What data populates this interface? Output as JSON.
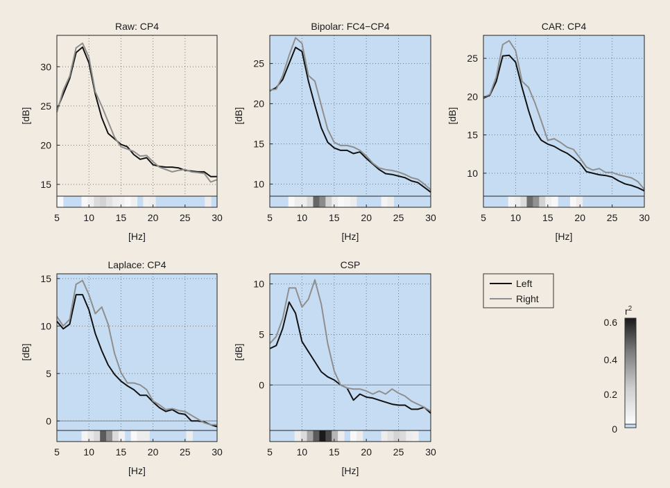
{
  "colors": {
    "background": "#f2ebe1",
    "plot_bg_raw": "#f2ebe1",
    "plot_bg": "#c6dcf2",
    "left_line": "#111111",
    "right_line": "#8e8e8e"
  },
  "legend": {
    "left_label": "Left",
    "right_label": "Right"
  },
  "colorbar": {
    "label": "r",
    "label_sup": "2",
    "ticks": [
      "0",
      "0.2",
      "0.4",
      "0.6"
    ],
    "range": [
      0,
      0.63
    ]
  },
  "chart_data": [
    {
      "type": "line",
      "title": "Raw: CP4",
      "xlabel": "[Hz]",
      "ylabel": "[dB]",
      "xlim": [
        5,
        30
      ],
      "ylim": [
        13.5,
        34
      ],
      "xticks": [
        5,
        10,
        15,
        20,
        25,
        30
      ],
      "yticks": [
        15,
        20,
        25,
        30
      ],
      "grid": true,
      "shaded_background": false,
      "x": [
        5,
        6,
        7,
        8,
        9,
        10,
        11,
        12,
        13,
        14,
        15,
        16,
        17,
        18,
        19,
        20,
        21,
        22,
        23,
        24,
        25,
        26,
        27,
        28,
        29,
        30
      ],
      "series": [
        {
          "name": "Left",
          "values": [
            24.5,
            26.5,
            28.5,
            31.8,
            32.5,
            30.5,
            26.5,
            23.5,
            21.5,
            20.8,
            20.1,
            19.8,
            18.8,
            18.2,
            18.4,
            17.5,
            17.3,
            17.2,
            17.2,
            17.1,
            16.8,
            16.7,
            16.6,
            16.6,
            16.0,
            16.0
          ]
        },
        {
          "name": "Right",
          "values": [
            24.2,
            27.0,
            28.8,
            32.4,
            33.0,
            31.2,
            26.8,
            25.0,
            23.0,
            21.0,
            19.8,
            19.5,
            19.2,
            18.6,
            18.7,
            17.9,
            17.2,
            16.9,
            16.6,
            16.8,
            16.9,
            16.6,
            16.5,
            16.4,
            15.3,
            15.6
          ]
        }
      ],
      "r2_bins": [
        0.02,
        0,
        0,
        0,
        0.02,
        0.04,
        0.1,
        0.12,
        0.08,
        0.05,
        0.04,
        0.02,
        0.04,
        0,
        0.04,
        0.05,
        0,
        0,
        0,
        0,
        0,
        0,
        0,
        0,
        0.05,
        0
      ]
    },
    {
      "type": "line",
      "title": "Bipolar: FC4−CP4",
      "xlabel": "[Hz]",
      "ylabel": "[dB]",
      "xlim": [
        5,
        30
      ],
      "ylim": [
        8.5,
        28.5
      ],
      "xticks": [
        5,
        10,
        15,
        20,
        25,
        30
      ],
      "yticks": [
        10,
        15,
        20,
        25
      ],
      "grid": true,
      "shaded_background": true,
      "x": [
        5,
        6,
        7,
        8,
        9,
        10,
        11,
        12,
        13,
        14,
        15,
        16,
        17,
        18,
        19,
        20,
        21,
        22,
        23,
        24,
        25,
        26,
        27,
        28,
        29,
        30
      ],
      "series": [
        {
          "name": "Left",
          "values": [
            21.6,
            22.0,
            23.0,
            25.0,
            27.0,
            26.5,
            22.8,
            19.8,
            17.0,
            15.2,
            14.5,
            14.2,
            14.2,
            13.8,
            14.0,
            13.2,
            12.5,
            11.8,
            11.3,
            11.2,
            11.0,
            10.8,
            10.4,
            10.2,
            9.6,
            9.0
          ]
        },
        {
          "name": "Right",
          "values": [
            21.7,
            21.8,
            23.5,
            26.0,
            28.2,
            27.5,
            23.5,
            22.8,
            19.8,
            16.8,
            15.2,
            14.8,
            14.8,
            14.6,
            14.2,
            13.5,
            12.6,
            12.0,
            11.8,
            11.7,
            11.5,
            11.2,
            10.8,
            10.6,
            10.0,
            9.3
          ]
        }
      ],
      "r2_bins": [
        0,
        0,
        0,
        0.02,
        0.05,
        0.05,
        0.1,
        0.42,
        0.32,
        0.12,
        0.05,
        0.02,
        0.03,
        0.05,
        0,
        0,
        0,
        0,
        0.03,
        0.05,
        0,
        0,
        0,
        0,
        0,
        0
      ]
    },
    {
      "type": "line",
      "title": "CAR: CP4",
      "xlabel": "[Hz]",
      "ylabel": "[dB]",
      "xlim": [
        5,
        30
      ],
      "ylim": [
        7,
        28
      ],
      "xticks": [
        5,
        10,
        15,
        20,
        25,
        30
      ],
      "yticks": [
        10,
        15,
        20,
        25
      ],
      "grid": true,
      "shaded_background": true,
      "x": [
        5,
        6,
        7,
        8,
        9,
        10,
        11,
        12,
        13,
        14,
        15,
        16,
        17,
        18,
        19,
        20,
        21,
        22,
        23,
        24,
        25,
        26,
        27,
        28,
        29,
        30
      ],
      "series": [
        {
          "name": "Left",
          "values": [
            19.8,
            20.2,
            22.0,
            25.3,
            25.4,
            24.5,
            21.2,
            18.2,
            15.6,
            14.3,
            13.8,
            13.5,
            13.0,
            12.6,
            12.0,
            11.3,
            10.2,
            10.0,
            9.8,
            9.7,
            9.5,
            9.0,
            8.6,
            8.4,
            8.1,
            7.7
          ]
        },
        {
          "name": "Right",
          "values": [
            19.9,
            20.3,
            22.6,
            26.8,
            27.3,
            26.0,
            22.0,
            21.2,
            19.2,
            16.8,
            14.3,
            14.5,
            14.0,
            13.4,
            13.1,
            12.0,
            10.8,
            10.4,
            10.6,
            10.1,
            10.1,
            9.8,
            9.6,
            9.4,
            8.9,
            7.9
          ]
        }
      ],
      "r2_bins": [
        0,
        0,
        0,
        0,
        0.03,
        0.05,
        0.1,
        0.4,
        0.3,
        0.12,
        0.04,
        0.02,
        0,
        0,
        0.02,
        0.05,
        0,
        0,
        0,
        0,
        0,
        0,
        0,
        0,
        0,
        0
      ]
    },
    {
      "type": "line",
      "title": "Laplace: CP4",
      "xlabel": "[Hz]",
      "ylabel": "[dB]",
      "xlim": [
        5,
        30
      ],
      "ylim": [
        -1,
        15.5
      ],
      "xticks": [
        5,
        10,
        15,
        20,
        25,
        30
      ],
      "yticks": [
        0,
        5,
        10,
        15
      ],
      "grid": true,
      "shaded_background": true,
      "x": [
        5,
        6,
        7,
        8,
        9,
        10,
        11,
        12,
        13,
        14,
        15,
        16,
        17,
        18,
        19,
        20,
        21,
        22,
        23,
        24,
        25,
        26,
        27,
        28,
        29,
        30
      ],
      "series": [
        {
          "name": "Left",
          "values": [
            10.5,
            9.7,
            10.2,
            13.3,
            13.3,
            11.7,
            9.2,
            7.4,
            5.9,
            4.9,
            4.2,
            3.7,
            3.3,
            2.7,
            2.7,
            2.0,
            1.4,
            1.0,
            1.2,
            0.8,
            0.7,
            0.0,
            0.0,
            -0.1,
            -0.4,
            -0.6
          ]
        },
        {
          "name": "Right",
          "values": [
            11.0,
            10.0,
            10.7,
            14.4,
            14.8,
            13.3,
            11.3,
            12.0,
            10.2,
            7.1,
            5.1,
            4.0,
            4.0,
            3.8,
            3.3,
            2.1,
            1.7,
            1.2,
            1.3,
            1.1,
            1.0,
            0.6,
            0.2,
            -0.2,
            -0.4,
            -0.4
          ]
        }
      ],
      "r2_bins": [
        0,
        0,
        0,
        0,
        0.03,
        0.06,
        0.1,
        0.45,
        0.3,
        0.1,
        0.04,
        0,
        0.02,
        0.05,
        0.05,
        0,
        0,
        0,
        0,
        0,
        0,
        0.05,
        0,
        0,
        0,
        0
      ]
    },
    {
      "type": "line",
      "title": "CSP",
      "xlabel": "[Hz]",
      "ylabel": "[dB]",
      "xlim": [
        5,
        30
      ],
      "ylim": [
        -4.5,
        11
      ],
      "xticks": [
        5,
        10,
        15,
        20,
        25,
        30
      ],
      "yticks": [
        0,
        5,
        10
      ],
      "grid": true,
      "shaded_background": true,
      "x": [
        5,
        6,
        7,
        8,
        9,
        10,
        11,
        12,
        13,
        14,
        15,
        16,
        17,
        18,
        19,
        20,
        21,
        22,
        23,
        24,
        25,
        26,
        27,
        28,
        29,
        30
      ],
      "series": [
        {
          "name": "Left",
          "values": [
            3.6,
            3.9,
            5.6,
            8.2,
            7.1,
            4.3,
            3.3,
            2.3,
            1.3,
            0.8,
            0.5,
            0.0,
            -0.3,
            -1.5,
            -0.9,
            -1.2,
            -1.3,
            -1.5,
            -1.7,
            -1.9,
            -2.0,
            -2.0,
            -2.4,
            -2.4,
            -2.2,
            -2.8
          ]
        },
        {
          "name": "Right",
          "values": [
            4.1,
            4.8,
            6.6,
            9.6,
            9.6,
            7.7,
            8.5,
            10.4,
            8.0,
            4.1,
            1.4,
            0.0,
            -0.3,
            -0.4,
            -0.4,
            -0.6,
            -0.9,
            -0.6,
            -0.9,
            -0.4,
            -0.8,
            -1.1,
            -1.6,
            -1.9,
            -2.2,
            -2.6
          ]
        }
      ],
      "r2_bins": [
        0,
        0,
        0,
        0,
        0.05,
        0.1,
        0.25,
        0.45,
        0.63,
        0.5,
        0.2,
        0.05,
        0,
        0.02,
        0.05,
        0,
        0,
        0,
        0.05,
        0.08,
        0.12,
        0.1,
        0.05,
        0.04,
        0,
        0
      ]
    }
  ]
}
